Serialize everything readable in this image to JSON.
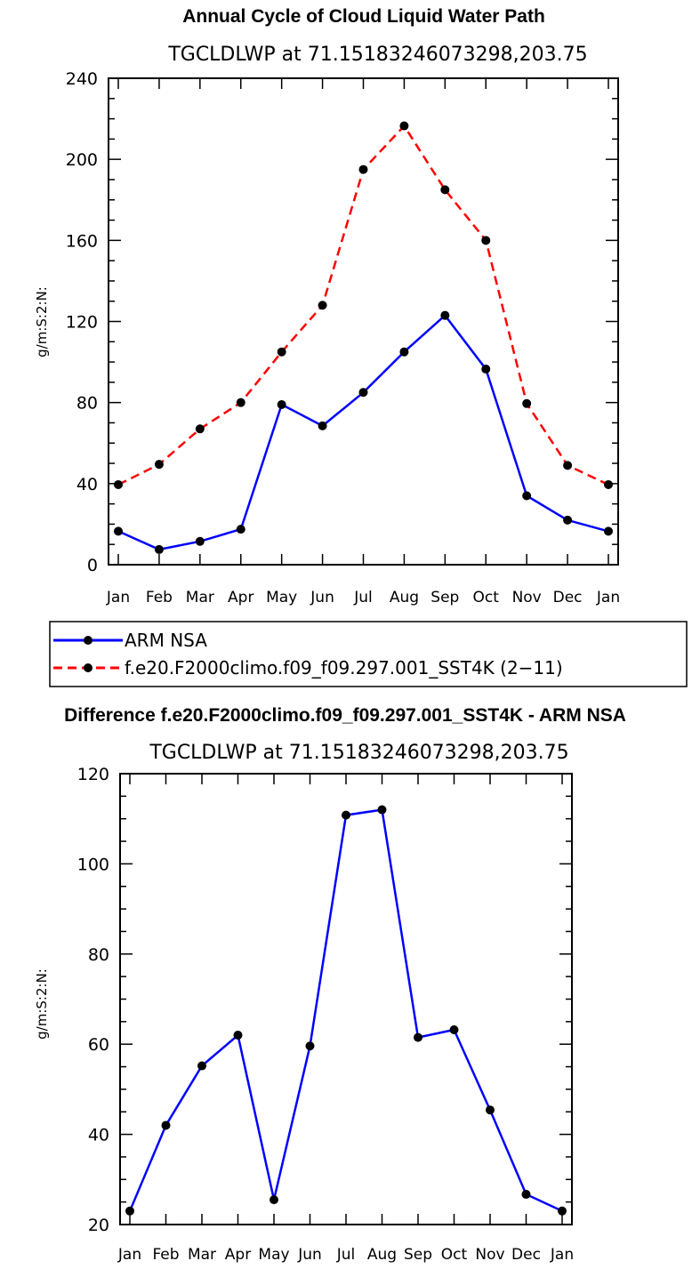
{
  "chart_data": [
    {
      "type": "line",
      "title": "Annual Cycle of Cloud Liquid Water Path",
      "subtitle": "TGCLDLWP  at  71.15183246073298,203.75",
      "ylabel": "g/m:S:2:N:",
      "ylim": [
        0,
        240
      ],
      "yticks": [
        0,
        40,
        80,
        120,
        160,
        200,
        240
      ],
      "yminor_step": 10,
      "categories": [
        "Jan",
        "Feb",
        "Mar",
        "Apr",
        "May",
        "Jun",
        "Jul",
        "Aug",
        "Sep",
        "Oct",
        "Nov",
        "Dec",
        "Jan"
      ],
      "series": [
        {
          "name": "ARM NSA",
          "color": "#0000ff",
          "dash": "solid",
          "values": [
            16.5,
            7.5,
            11.5,
            17.5,
            79,
            68.5,
            85,
            105,
            123,
            96.5,
            34,
            22,
            16.5
          ]
        },
        {
          "name": "f.e20.F2000climo.f09_f09.297.001_SST4K (2−11)",
          "color": "#ff0000",
          "dash": "dashed",
          "values": [
            39.5,
            49.5,
            67,
            80,
            105,
            128,
            195,
            216.5,
            185,
            160,
            79.5,
            49,
            39.5
          ]
        }
      ],
      "legend": "bottom"
    },
    {
      "type": "line",
      "title": "Difference f.e20.F2000climo.f09_f09.297.001_SST4K - ARM NSA",
      "subtitle": "TGCLDLWP  at  71.15183246073298,203.75",
      "ylabel": "g/m:S:2:N:",
      "ylim": [
        20,
        120
      ],
      "yticks": [
        20,
        40,
        60,
        80,
        100,
        120
      ],
      "yminor_step": 5,
      "categories": [
        "Jan",
        "Feb",
        "Mar",
        "Apr",
        "May",
        "Jun",
        "Jul",
        "Aug",
        "Sep",
        "Oct",
        "Nov",
        "Dec",
        "Jan"
      ],
      "series": [
        {
          "name": "Difference",
          "color": "#0000ff",
          "dash": "solid",
          "values": [
            23,
            42,
            55.2,
            62,
            25.5,
            59.6,
            110.8,
            112,
            61.5,
            63.2,
            45.4,
            26.7,
            23
          ]
        }
      ]
    }
  ]
}
